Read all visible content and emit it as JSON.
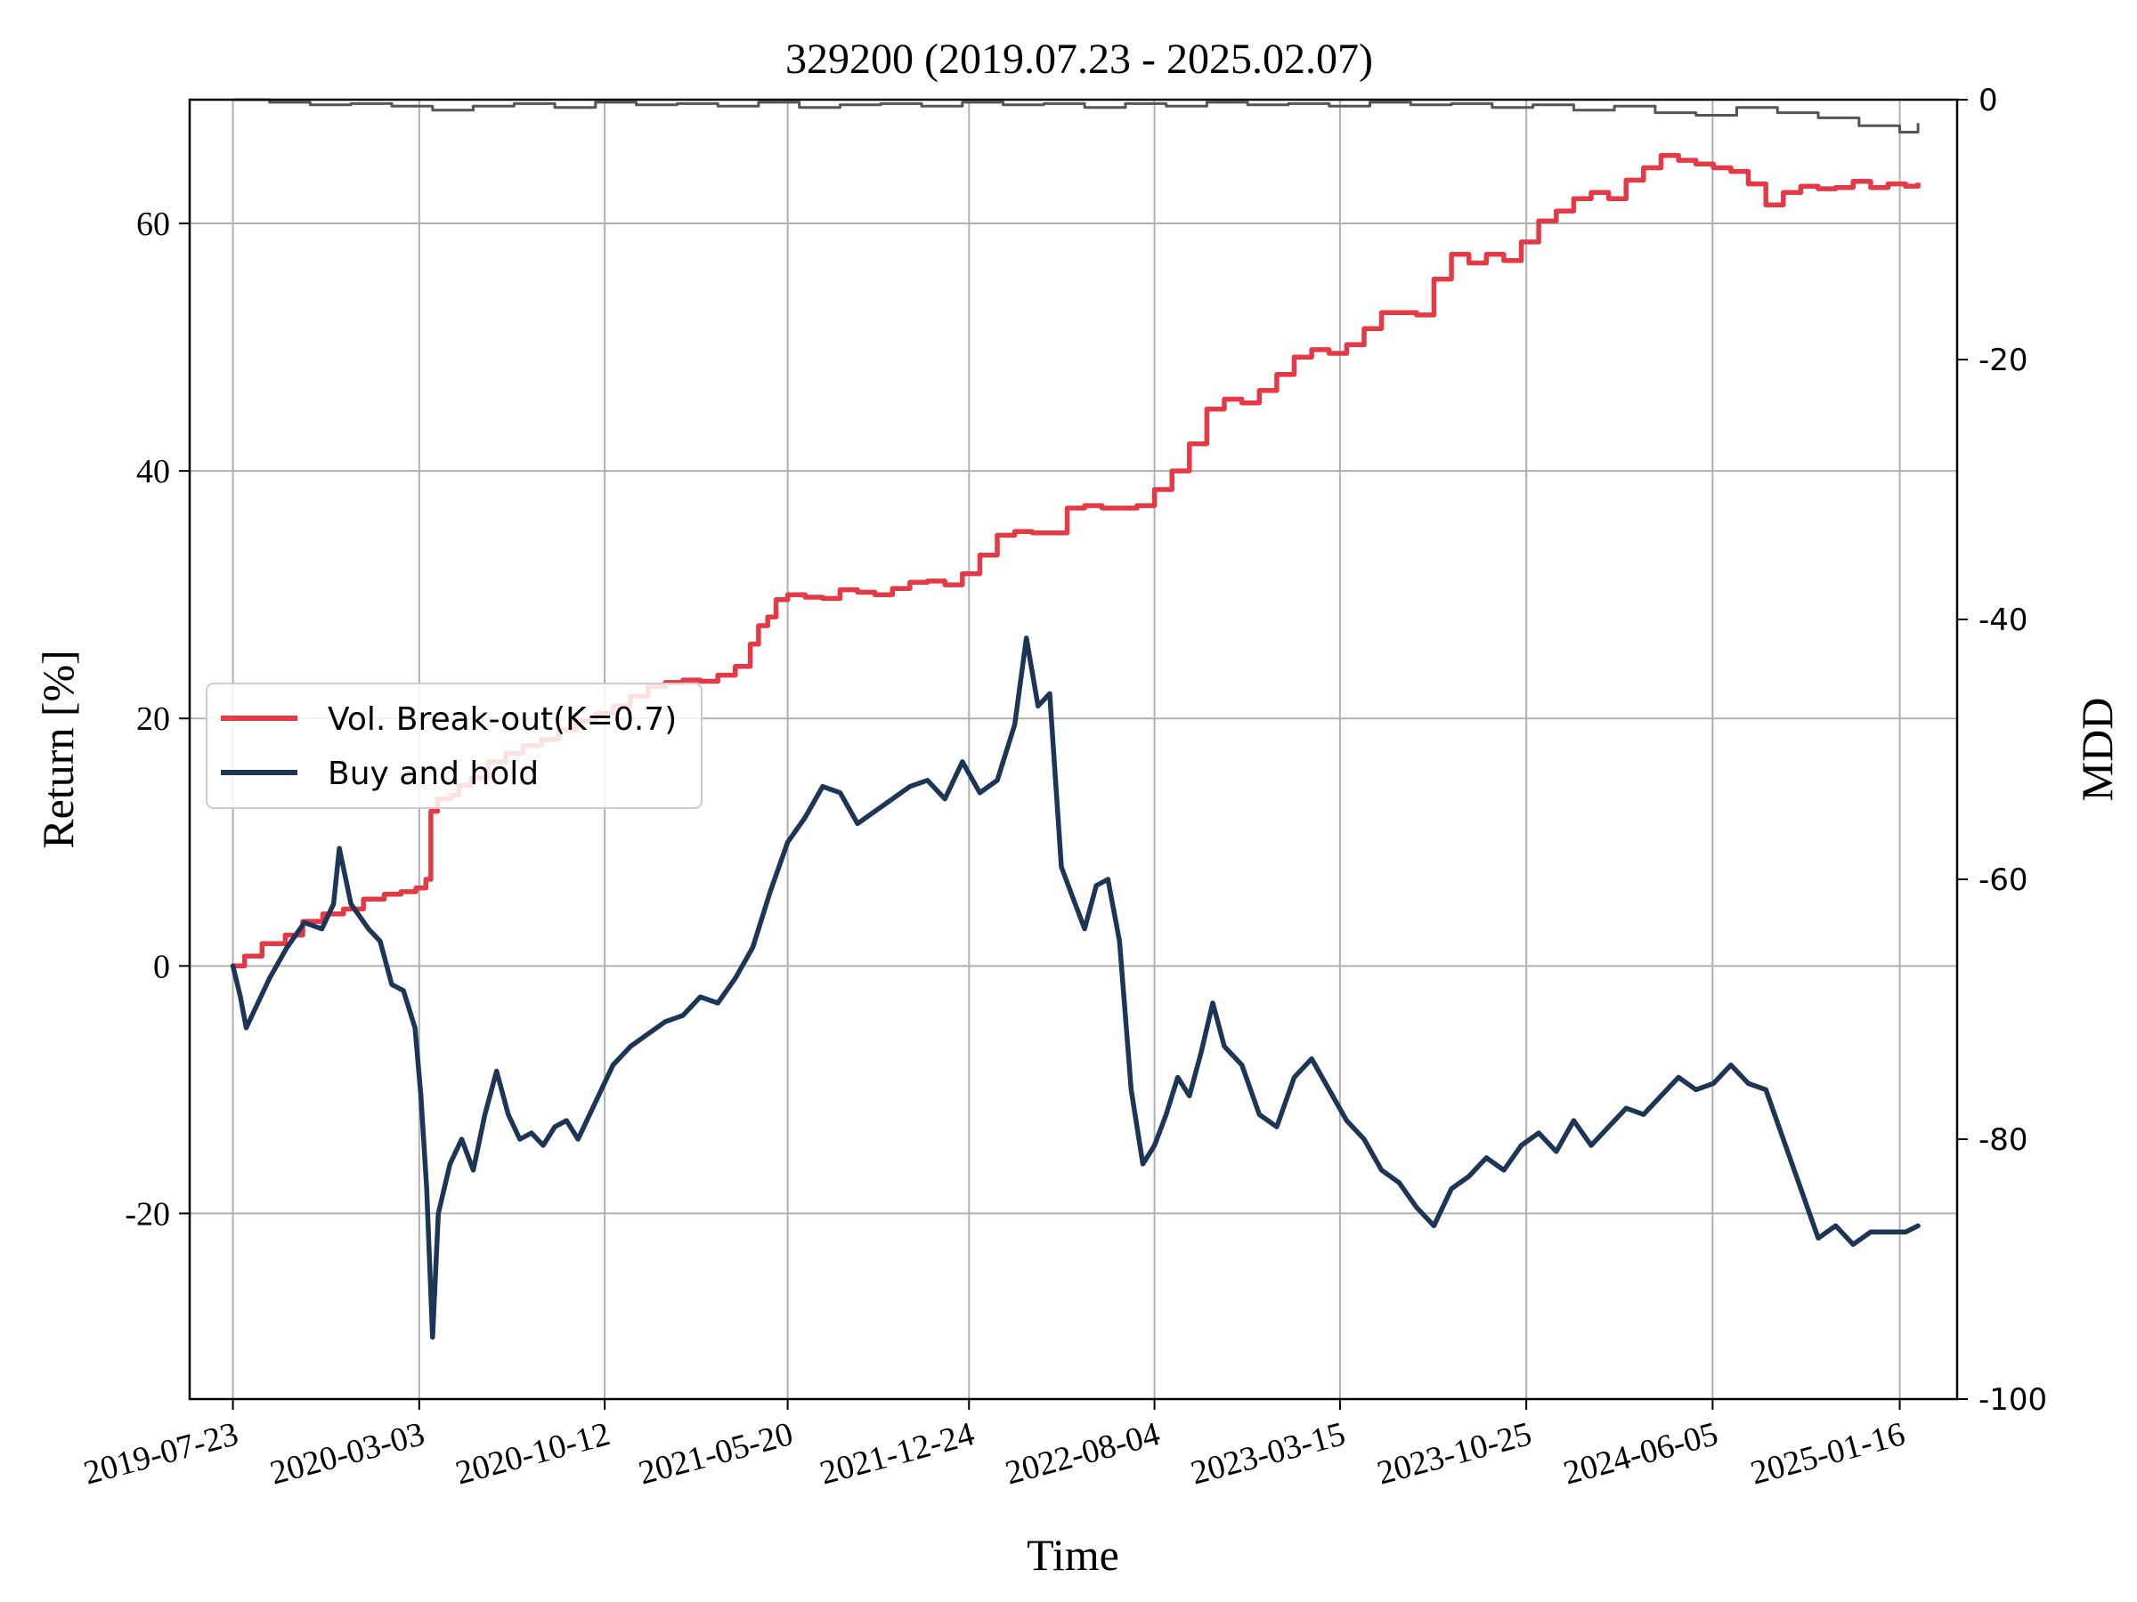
{
  "chart_data": {
    "type": "line",
    "title": "329200 (2019.07.23 - 2025.02.07)",
    "xlabel": "Time",
    "ylabel": "Return [%]",
    "y2label": "MDD",
    "x_type": "date",
    "xlim": [
      "2019-06-01",
      "2025-03-26"
    ],
    "ylim": [
      -35,
      70
    ],
    "y2lim": [
      -100,
      0
    ],
    "grid": true,
    "legend_position": "center-left",
    "x_ticks": [
      "2019-07-23",
      "2020-03-03",
      "2020-10-12",
      "2021-05-20",
      "2021-12-24",
      "2022-08-04",
      "2023-03-15",
      "2023-10-25",
      "2024-06-05",
      "2025-01-16"
    ],
    "y_ticks": [
      "-20",
      "0",
      "20",
      "40",
      "60"
    ],
    "y2_ticks": [
      "0",
      "-20",
      "-40",
      "-60",
      "-80",
      "-100"
    ],
    "series": [
      {
        "name": "Vol. Break-out(K=0.7)",
        "axis": "left",
        "color": "#e63946",
        "x": [
          "2019-07-23",
          "2019-08-06",
          "2019-08-27",
          "2019-09-24",
          "2019-10-15",
          "2019-11-08",
          "2019-12-03",
          "2019-12-27",
          "2020-01-21",
          "2020-02-10",
          "2020-02-28",
          "2020-03-11",
          "2020-03-17",
          "2020-03-25",
          "2020-04-10",
          "2020-04-20",
          "2020-05-04",
          "2020-05-25",
          "2020-06-15",
          "2020-07-06",
          "2020-07-28",
          "2020-08-18",
          "2020-09-08",
          "2020-10-01",
          "2020-10-22",
          "2020-11-12",
          "2020-12-03",
          "2020-12-24",
          "2021-01-14",
          "2021-02-04",
          "2021-02-25",
          "2021-03-18",
          "2021-04-05",
          "2021-04-15",
          "2021-04-26",
          "2021-05-06",
          "2021-05-20",
          "2021-06-10",
          "2021-07-01",
          "2021-07-22",
          "2021-08-12",
          "2021-09-02",
          "2021-09-23",
          "2021-10-14",
          "2021-11-04",
          "2021-11-25",
          "2021-12-16",
          "2022-01-06",
          "2022-01-27",
          "2022-02-17",
          "2022-03-10",
          "2022-03-31",
          "2022-04-21",
          "2022-05-12",
          "2022-06-02",
          "2022-06-23",
          "2022-07-14",
          "2022-08-04",
          "2022-08-25",
          "2022-09-15",
          "2022-10-06",
          "2022-10-27",
          "2022-11-17",
          "2022-12-08",
          "2022-12-29",
          "2023-01-19",
          "2023-02-09",
          "2023-03-02",
          "2023-03-23",
          "2023-04-13",
          "2023-05-04",
          "2023-05-25",
          "2023-06-15",
          "2023-07-06",
          "2023-07-27",
          "2023-08-17",
          "2023-09-07",
          "2023-09-28",
          "2023-10-19",
          "2023-11-09",
          "2023-11-30",
          "2023-12-21",
          "2024-01-11",
          "2024-02-01",
          "2024-02-22",
          "2024-03-14",
          "2024-04-04",
          "2024-04-25",
          "2024-05-16",
          "2024-06-06",
          "2024-06-27",
          "2024-07-18",
          "2024-08-08",
          "2024-08-29",
          "2024-09-19",
          "2024-10-10",
          "2024-10-31",
          "2024-11-21",
          "2024-12-12",
          "2025-01-02",
          "2025-01-23",
          "2025-02-07"
        ],
        "values": [
          0,
          0.8,
          1.8,
          2.5,
          3.6,
          4.2,
          4.6,
          5.4,
          5.8,
          6.0,
          6.3,
          7.0,
          12.5,
          13.5,
          13.8,
          14.6,
          15.2,
          16.5,
          17.2,
          17.8,
          18.3,
          19.1,
          19.8,
          20.4,
          21.0,
          21.8,
          22.6,
          22.9,
          23.1,
          23.0,
          23.5,
          24.2,
          26.0,
          27.5,
          28.2,
          29.6,
          30.0,
          29.8,
          29.7,
          30.4,
          30.2,
          30.0,
          30.5,
          31.0,
          31.1,
          30.8,
          31.7,
          33.2,
          34.8,
          35.1,
          35.0,
          35.0,
          37.0,
          37.2,
          37.0,
          37.0,
          37.2,
          38.5,
          40.0,
          42.2,
          45.0,
          45.8,
          45.5,
          46.5,
          47.8,
          49.2,
          49.8,
          49.5,
          50.2,
          51.5,
          52.8,
          52.8,
          52.6,
          55.5,
          57.5,
          56.8,
          57.5,
          57.0,
          58.5,
          60.2,
          61.0,
          62.0,
          62.5,
          62.0,
          63.5,
          64.5,
          65.5,
          65.1,
          64.8,
          64.5,
          64.2,
          63.2,
          61.5,
          62.5,
          63.0,
          62.8,
          62.9,
          63.4,
          62.9,
          63.2,
          63.0,
          63.3
        ],
        "values_note": ""
      },
      {
        "name": "Buy and hold",
        "axis": "left",
        "color": "#1d3557",
        "x": [
          "2019-07-23",
          "2019-08-01",
          "2019-08-08",
          "2019-08-22",
          "2019-09-05",
          "2019-09-26",
          "2019-10-17",
          "2019-11-07",
          "2019-11-21",
          "2019-11-28",
          "2019-12-12",
          "2020-01-02",
          "2020-01-16",
          "2020-01-30",
          "2020-02-13",
          "2020-02-27",
          "2020-03-05",
          "2020-03-12",
          "2020-03-19",
          "2020-03-26",
          "2020-04-09",
          "2020-04-23",
          "2020-05-07",
          "2020-05-21",
          "2020-06-04",
          "2020-06-18",
          "2020-07-02",
          "2020-07-16",
          "2020-07-30",
          "2020-08-13",
          "2020-08-27",
          "2020-09-10",
          "2020-10-01",
          "2020-10-22",
          "2020-11-12",
          "2020-12-03",
          "2020-12-24",
          "2021-01-14",
          "2021-02-04",
          "2021-02-25",
          "2021-03-18",
          "2021-04-08",
          "2021-04-29",
          "2021-05-20",
          "2021-06-10",
          "2021-07-01",
          "2021-07-22",
          "2021-08-12",
          "2021-09-02",
          "2021-09-23",
          "2021-10-14",
          "2021-11-04",
          "2021-11-25",
          "2021-12-16",
          "2022-01-06",
          "2022-01-27",
          "2022-02-17",
          "2022-03-03",
          "2022-03-17",
          "2022-03-31",
          "2022-04-14",
          "2022-04-28",
          "2022-05-12",
          "2022-05-26",
          "2022-06-09",
          "2022-06-23",
          "2022-07-07",
          "2022-07-21",
          "2022-08-04",
          "2022-08-18",
          "2022-09-01",
          "2022-09-15",
          "2022-09-29",
          "2022-10-13",
          "2022-10-27",
          "2022-11-17",
          "2022-12-08",
          "2022-12-29",
          "2023-01-19",
          "2023-02-09",
          "2023-03-02",
          "2023-03-23",
          "2023-04-13",
          "2023-05-04",
          "2023-05-25",
          "2023-06-15",
          "2023-07-06",
          "2023-07-27",
          "2023-08-17",
          "2023-09-07",
          "2023-09-28",
          "2023-10-19",
          "2023-11-09",
          "2023-11-30",
          "2023-12-21",
          "2024-01-11",
          "2024-02-01",
          "2024-02-22",
          "2024-03-14",
          "2024-04-04",
          "2024-04-25",
          "2024-05-16",
          "2024-06-06",
          "2024-06-27",
          "2024-07-18",
          "2024-08-08",
          "2024-08-29",
          "2024-09-19",
          "2024-10-10",
          "2024-10-31",
          "2024-11-21",
          "2024-12-12",
          "2025-01-02",
          "2025-01-23",
          "2025-02-07"
        ],
        "values": [
          0,
          -2.5,
          -5.0,
          -3.0,
          -1.0,
          1.5,
          3.5,
          3.0,
          5.0,
          9.5,
          5.0,
          3.0,
          2.0,
          -1.5,
          -2.0,
          -5.0,
          -10.5,
          -18.0,
          -30.0,
          -20.0,
          -16.0,
          -14.0,
          -16.5,
          -12.0,
          -8.5,
          -12.0,
          -14.0,
          -13.5,
          -14.5,
          -13.0,
          -12.5,
          -14.0,
          -11.0,
          -8.0,
          -6.5,
          -5.5,
          -4.5,
          -4.0,
          -2.5,
          -3.0,
          -1.0,
          1.5,
          6.0,
          10.0,
          12.0,
          14.5,
          14.0,
          11.5,
          12.5,
          13.5,
          14.5,
          15.0,
          13.5,
          16.5,
          14.0,
          15.0,
          19.5,
          26.5,
          21.0,
          22.0,
          8.0,
          5.5,
          3.0,
          6.5,
          7.0,
          2.0,
          -10.0,
          -16.0,
          -14.5,
          -12.0,
          -9.0,
          -10.5,
          -7.0,
          -3.0,
          -6.5,
          -8.0,
          -12.0,
          -13.0,
          -9.0,
          -7.5,
          -10.0,
          -12.5,
          -14.0,
          -16.5,
          -17.5,
          -19.5,
          -21.0,
          -18.0,
          -17.0,
          -15.5,
          -16.5,
          -14.5,
          -13.5,
          -15.0,
          -12.5,
          -14.5,
          -13.0,
          -11.5,
          -12.0,
          -10.5,
          -9.0,
          -10.0,
          -9.5,
          -8.0,
          -9.5,
          -10.0,
          -14.0,
          -18.0,
          -22.0,
          -21.0,
          -22.5,
          -21.5,
          -21.5,
          -21.5,
          -21.0
        ]
      },
      {
        "name": "",
        "axis": "right",
        "color": "#555555",
        "x": [
          "2019-07-23",
          "2019-09-05",
          "2019-10-24",
          "2019-12-12",
          "2020-01-30",
          "2020-03-19",
          "2020-05-07",
          "2020-06-25",
          "2020-08-13",
          "2020-10-01",
          "2020-11-19",
          "2021-01-07",
          "2021-02-25",
          "2021-04-15",
          "2021-06-03",
          "2021-07-22",
          "2021-09-09",
          "2021-10-28",
          "2021-12-16",
          "2022-02-03",
          "2022-03-24",
          "2022-05-12",
          "2022-06-30",
          "2022-08-18",
          "2022-10-06",
          "2022-11-24",
          "2023-01-12",
          "2023-03-02",
          "2023-04-20",
          "2023-06-08",
          "2023-07-27",
          "2023-09-14",
          "2023-11-02",
          "2023-12-21",
          "2024-02-08",
          "2024-03-28",
          "2024-05-16",
          "2024-07-04",
          "2024-08-22",
          "2024-10-10",
          "2024-11-28",
          "2025-01-16",
          "2025-02-07"
        ],
        "values": [
          0,
          -0.2,
          -0.4,
          -0.3,
          -0.5,
          -0.8,
          -0.5,
          -0.3,
          -0.6,
          -0.2,
          -0.4,
          -0.3,
          -0.5,
          -0.2,
          -0.6,
          -0.4,
          -0.3,
          -0.5,
          -0.2,
          -0.4,
          -0.3,
          -0.6,
          -0.3,
          -0.5,
          -0.2,
          -0.4,
          -0.3,
          -0.5,
          -0.2,
          -0.4,
          -0.3,
          -0.6,
          -0.4,
          -0.8,
          -0.5,
          -1.0,
          -1.2,
          -0.6,
          -1.0,
          -1.4,
          -2.0,
          -2.5,
          -1.8
        ]
      }
    ]
  }
}
